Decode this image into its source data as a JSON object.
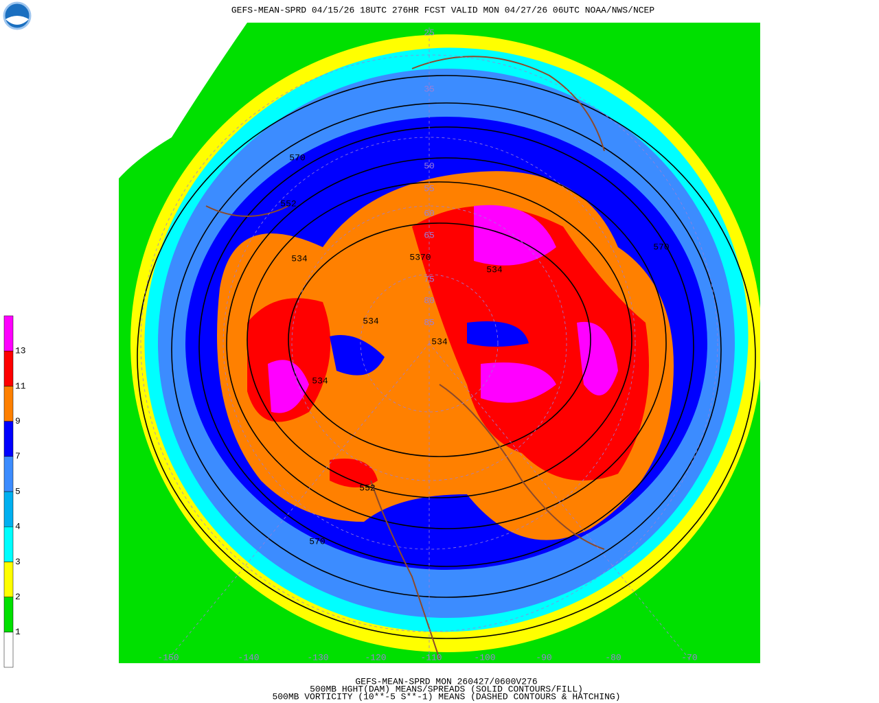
{
  "header": {
    "title": "GEFS-MEAN-SPRD 04/15/26 18UTC 276HR FCST VALID MON 04/27/26 06UTC NOAA/NWS/NCEP"
  },
  "footer": {
    "lines": [
      "GEFS-MEAN-SPRD MON 260427/0600V276",
      "500MB HGHT(DAM) MEANS/SPREADS (SOLID CONTOURS/FILL)",
      "500MB VORTICITY (10**-5 S**-1) MEANS (DASHED CONTOURS & HATCHING)"
    ]
  },
  "legend": {
    "labels": [
      "1",
      "2",
      "3",
      "4",
      "5",
      "7",
      "9",
      "11",
      "13"
    ],
    "colors": [
      "#ffffff",
      "#00e000",
      "#ffff00",
      "#00ffff",
      "#00b0f0",
      "#3c8cff",
      "#0000ff",
      "#ff8000",
      "#ff0000",
      "#ff00ff"
    ]
  },
  "map": {
    "contour_labels": [
      "570",
      "552",
      "534",
      "5370",
      "534",
      "534",
      "534",
      "534",
      "552",
      "570",
      "570"
    ],
    "latitude_labels": [
      "25",
      "35",
      "50",
      "55",
      "60",
      "65",
      "75",
      "80",
      "85"
    ],
    "longitude_labels": [
      "-150",
      "-140",
      "-130",
      "-120",
      "-110",
      "-100",
      "-90",
      "-80",
      "-70"
    ]
  }
}
